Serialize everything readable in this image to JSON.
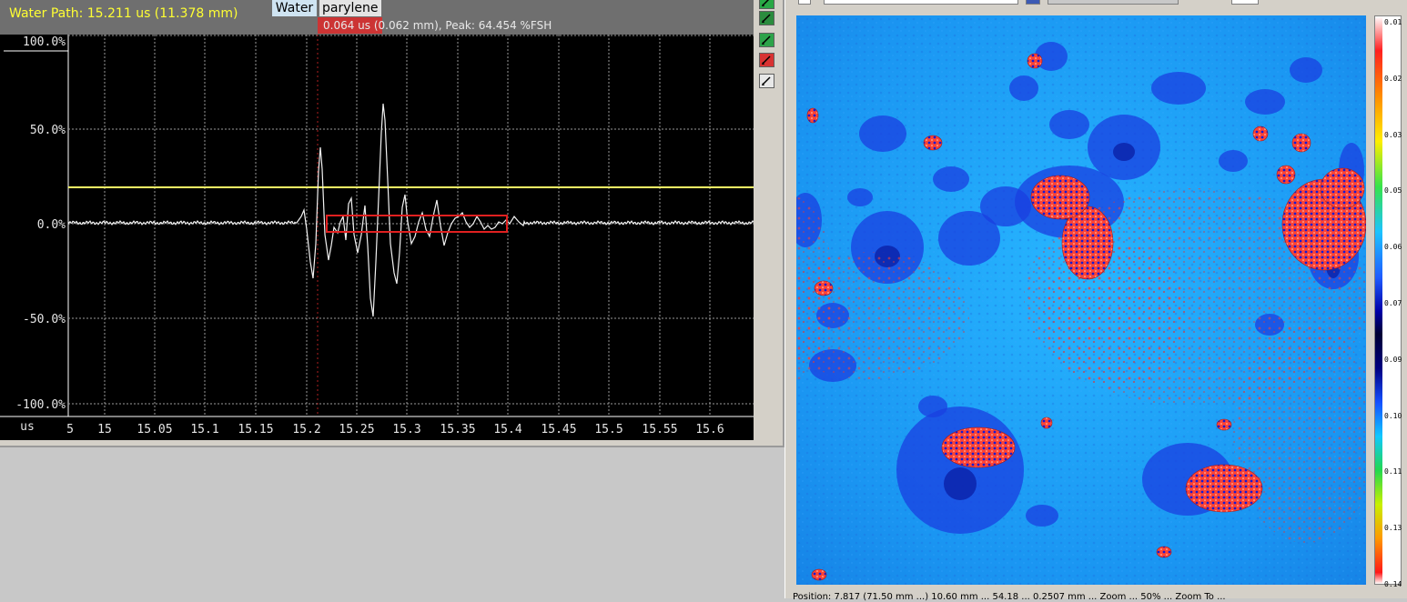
{
  "ascan": {
    "water_path": "Water Path: 15.211 us (11.378 mm)",
    "gate_water_label": "Water",
    "gate_parylene_label": "parylene",
    "gate_info": "0.064 us (0.062 mm), Peak: 64.454 %FSH",
    "y_ticks": [
      "100.0%",
      "50.0%",
      "0.0%",
      "-50.0%",
      "-100.0%"
    ],
    "x_unit": "us",
    "x_ticks": [
      "5",
      "15",
      "15.05",
      "15.1",
      "15.15",
      "15.2",
      "15.25",
      "15.3",
      "15.35",
      "15.4",
      "15.45",
      "15.5",
      "15.55",
      "15.6"
    ],
    "threshold_color": "#ffff66",
    "gate_color": "#e02020"
  },
  "toolbar_icons": [
    "pencil-icon",
    "eraser-icon",
    "grid-icon",
    "red-marker-icon",
    "edit-icon"
  ],
  "cscan": {
    "scale_ticks": [
      "0.01",
      "0.02",
      "0.03",
      "0.05",
      "0.06",
      "0.07",
      "0.09",
      "0.10",
      "0.11",
      "0.13",
      "0.14"
    ],
    "status": "Position: 7.817 (71.50 mm ...) 10.60 mm ... 54.18 ... 0.2507 mm ... Zoom ... 50% ... Zoom To ..."
  }
}
